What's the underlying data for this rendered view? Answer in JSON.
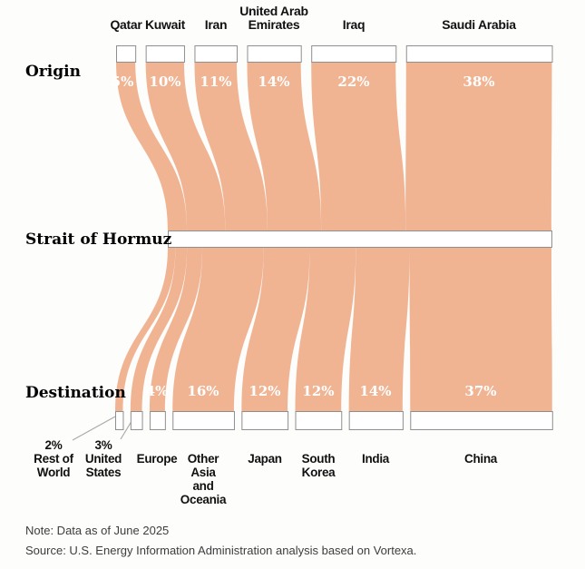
{
  "chart_data": {
    "type": "sankey",
    "unit": "%",
    "levels": [
      "Origin",
      "Strait of Hormuz",
      "Destination"
    ],
    "origins": [
      {
        "id": "qatar",
        "label": "Qatar",
        "pct": 5,
        "pct_label": "5%"
      },
      {
        "id": "kuwait",
        "label": "Kuwait",
        "pct": 10,
        "pct_label": "10%"
      },
      {
        "id": "iran",
        "label": "Iran",
        "pct": 11,
        "pct_label": "11%"
      },
      {
        "id": "uae",
        "label": "United Arab\nEmirates",
        "pct": 14,
        "pct_label": "14%"
      },
      {
        "id": "iraq",
        "label": "Iraq",
        "pct": 22,
        "pct_label": "22%"
      },
      {
        "id": "saudi-arabia",
        "label": "Saudi Arabia",
        "pct": 38,
        "pct_label": "38%"
      }
    ],
    "destinations": [
      {
        "id": "rest-of-world",
        "label": "2%\nRest of\nWorld",
        "pct": 2,
        "pct_label": ""
      },
      {
        "id": "united-states",
        "label": "3%\nUnited\nStates",
        "pct": 3,
        "pct_label": ""
      },
      {
        "id": "europe",
        "label": "Europe",
        "pct": 4,
        "pct_label": "4%"
      },
      {
        "id": "other-asia-oceania",
        "label": "Other\nAsia\nand\nOceania",
        "pct": 16,
        "pct_label": "16%"
      },
      {
        "id": "japan",
        "label": "Japan",
        "pct": 12,
        "pct_label": "12%"
      },
      {
        "id": "south-korea",
        "label": "South\nKorea",
        "pct": 12,
        "pct_label": "12%"
      },
      {
        "id": "india",
        "label": "India",
        "pct": 14,
        "pct_label": "14%"
      },
      {
        "id": "china",
        "label": "China",
        "pct": 37,
        "pct_label": "37%"
      }
    ],
    "note": "Note: Data as of June 2025",
    "source": "Source: U.S. Energy Information Administration analysis based on Vortexa."
  },
  "colors": {
    "flow": "#F0B493",
    "box_fill": "#FFFFFF",
    "box_border": "#8F8F8F",
    "leader_line": "#AAAAAA",
    "flow_pct_text": "#FFFFFF"
  }
}
